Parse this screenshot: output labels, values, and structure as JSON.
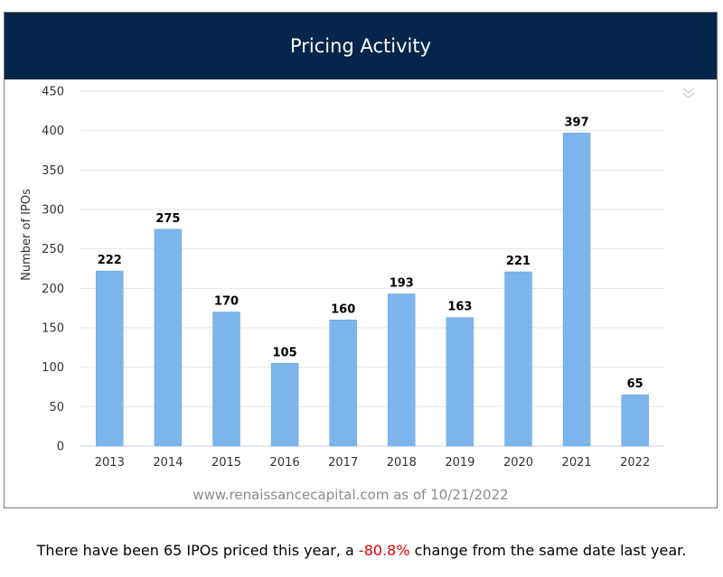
{
  "header": {
    "title": "Pricing Activity"
  },
  "chart_data": {
    "type": "bar",
    "title": "Pricing Activity",
    "categories": [
      "2013",
      "2014",
      "2015",
      "2016",
      "2017",
      "2018",
      "2019",
      "2020",
      "2021",
      "2022"
    ],
    "series": [
      {
        "values": [
          222,
          275,
          170,
          105,
          160,
          193,
          163,
          221,
          397,
          65
        ]
      }
    ],
    "ylabel": "Number of IPOs",
    "xlabel": "",
    "ylim": [
      0,
      450
    ],
    "yticks": [
      0,
      50,
      100,
      150,
      200,
      250,
      300,
      350,
      400,
      450
    ],
    "grid": true,
    "bar_color": "#7cb5ec",
    "credit": "www.renaissancecapital.com as of 10/21/2022"
  },
  "footer": {
    "text_before": "There have been 65 IPOs priced this year, a ",
    "change": "-80.8%",
    "text_after": " change from the same date last year.",
    "change_color": "#e60000"
  },
  "colors": {
    "header_bg": "#05254a",
    "header_text": "#ffffff"
  },
  "icons": {
    "menu": "chevron-double-down-icon"
  }
}
